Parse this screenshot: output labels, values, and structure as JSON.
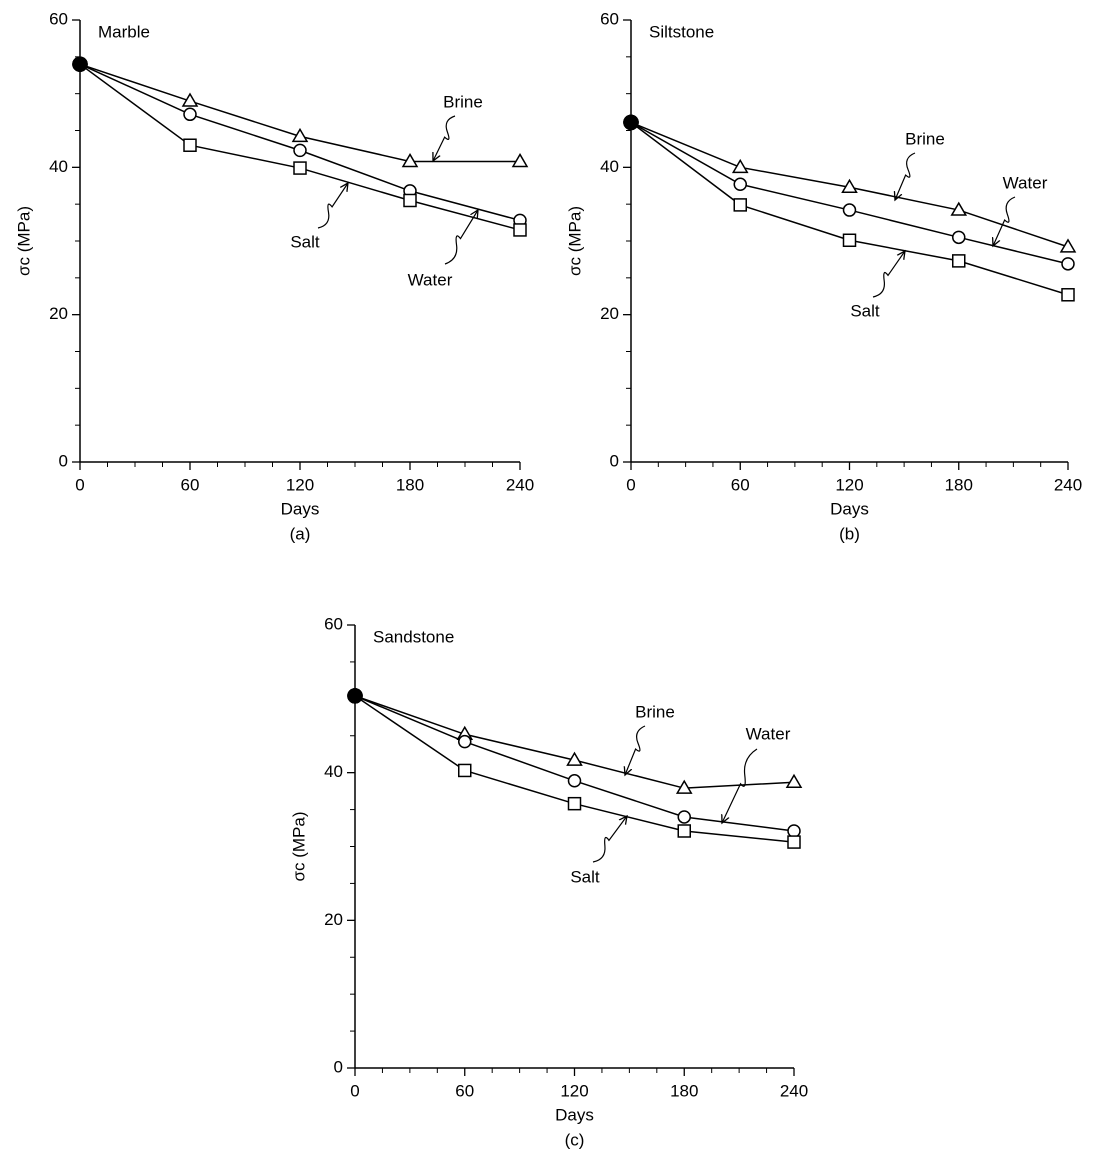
{
  "chart_data": [
    {
      "type": "line",
      "title": "Marble",
      "caption": "(a)",
      "xlabel": "Days",
      "ylabel": "σc (MPa)",
      "x": [
        0,
        60,
        120,
        180,
        240
      ],
      "xlim": [
        0,
        240
      ],
      "xticks": [
        0,
        60,
        120,
        180,
        240
      ],
      "ylim": [
        0,
        60
      ],
      "yticks": [
        0,
        20,
        40,
        60
      ],
      "color": "#000000",
      "series": [
        {
          "name": "Brine",
          "marker": "triangle",
          "values": [
            54,
            49,
            44.2,
            40.8,
            40.8
          ]
        },
        {
          "name": "Water",
          "marker": "circle",
          "values": [
            54,
            47.2,
            42.3,
            36.8,
            32.8
          ]
        },
        {
          "name": "Salt",
          "marker": "square",
          "values": [
            54,
            43,
            39.9,
            35.5,
            31.5
          ]
        }
      ]
    },
    {
      "type": "line",
      "title": "Siltstone",
      "caption": "(b)",
      "xlabel": "Days",
      "ylabel": "σc (MPa)",
      "x": [
        0,
        60,
        120,
        180,
        240
      ],
      "xlim": [
        0,
        240
      ],
      "xticks": [
        0,
        60,
        120,
        180,
        240
      ],
      "ylim": [
        0,
        60
      ],
      "yticks": [
        0,
        20,
        40,
        60
      ],
      "color": "#000000",
      "series": [
        {
          "name": "Brine",
          "marker": "triangle",
          "values": [
            46.1,
            40,
            37.3,
            34.2,
            29.2
          ]
        },
        {
          "name": "Water",
          "marker": "circle",
          "values": [
            46.1,
            37.7,
            34.2,
            30.5,
            26.9
          ]
        },
        {
          "name": "Salt",
          "marker": "square",
          "values": [
            46.1,
            34.9,
            30.1,
            27.3,
            22.7
          ]
        }
      ]
    },
    {
      "type": "line",
      "title": "Sandstone",
      "caption": "(c)",
      "xlabel": "Days",
      "ylabel": "σc (MPa)",
      "x": [
        0,
        60,
        120,
        180,
        240
      ],
      "xlim": [
        0,
        240
      ],
      "xticks": [
        0,
        60,
        120,
        180,
        240
      ],
      "ylim": [
        0,
        60
      ],
      "yticks": [
        0,
        20,
        40,
        60
      ],
      "color": "#000000",
      "series": [
        {
          "name": "Brine",
          "marker": "triangle",
          "values": [
            50.4,
            45.2,
            41.7,
            37.9,
            38.7
          ]
        },
        {
          "name": "Water",
          "marker": "circle",
          "values": [
            50.4,
            44.2,
            38.9,
            34,
            32.1
          ]
        },
        {
          "name": "Salt",
          "marker": "square",
          "values": [
            50.4,
            40.3,
            35.8,
            32.1,
            30.6
          ]
        }
      ]
    }
  ]
}
